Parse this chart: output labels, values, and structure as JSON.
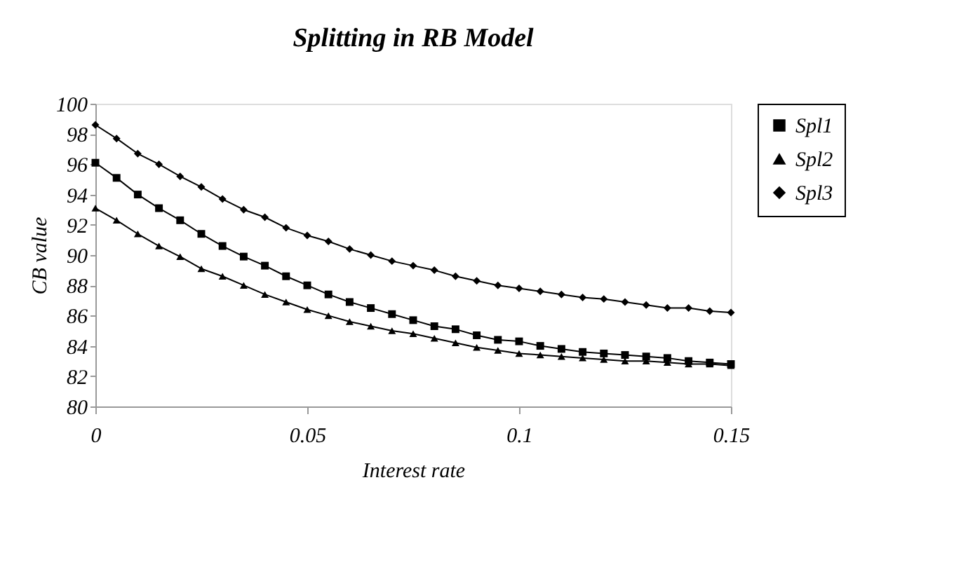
{
  "chart_data": {
    "type": "line",
    "title": "Splitting in RB Model",
    "xlabel": "Interest rate",
    "ylabel": "CB value",
    "x": [
      0,
      0.005,
      0.01,
      0.015,
      0.02,
      0.025,
      0.03,
      0.035,
      0.04,
      0.045,
      0.05,
      0.055,
      0.06,
      0.065,
      0.07,
      0.075,
      0.08,
      0.085,
      0.09,
      0.095,
      0.1,
      0.105,
      0.11,
      0.115,
      0.12,
      0.125,
      0.13,
      0.135,
      0.14,
      0.145,
      0.15
    ],
    "series": [
      {
        "name": "Spl1",
        "color": "#000000",
        "marker": "square",
        "values": [
          96.1,
          95.1,
          94.0,
          93.1,
          92.3,
          91.4,
          90.6,
          89.9,
          89.3,
          88.6,
          88.0,
          87.4,
          86.9,
          86.5,
          86.1,
          85.7,
          85.3,
          85.1,
          84.7,
          84.4,
          84.3,
          84.0,
          83.8,
          83.6,
          83.5,
          83.4,
          83.3,
          83.2,
          83.0,
          82.9,
          82.8
        ]
      },
      {
        "name": "Spl2",
        "color": "#000000",
        "marker": "triangle",
        "values": [
          93.1,
          92.3,
          91.4,
          90.6,
          89.9,
          89.1,
          88.6,
          88.0,
          87.4,
          86.9,
          86.4,
          86.0,
          85.6,
          85.3,
          85.0,
          84.8,
          84.5,
          84.2,
          83.9,
          83.7,
          83.5,
          83.4,
          83.3,
          83.2,
          83.1,
          83.0,
          83.0,
          82.9,
          82.8,
          82.8,
          82.7
        ]
      },
      {
        "name": "Spl3",
        "color": "#000000",
        "marker": "diamond",
        "values": [
          98.6,
          97.7,
          96.7,
          96.0,
          95.2,
          94.5,
          93.7,
          93.0,
          92.5,
          91.8,
          91.3,
          90.9,
          90.4,
          90.0,
          89.6,
          89.3,
          89.0,
          88.6,
          88.3,
          88.0,
          87.8,
          87.6,
          87.4,
          87.2,
          87.1,
          86.9,
          86.7,
          86.5,
          86.5,
          86.3,
          86.2
        ]
      }
    ],
    "xlim": [
      0,
      0.15
    ],
    "xticks": [
      0,
      0.05,
      0.1,
      0.15
    ],
    "ylim": [
      80,
      100
    ],
    "yticks": [
      80,
      82,
      84,
      86,
      88,
      90,
      92,
      94,
      96,
      98,
      100
    ],
    "grid": false,
    "legend": "right",
    "line_style": "solid"
  }
}
